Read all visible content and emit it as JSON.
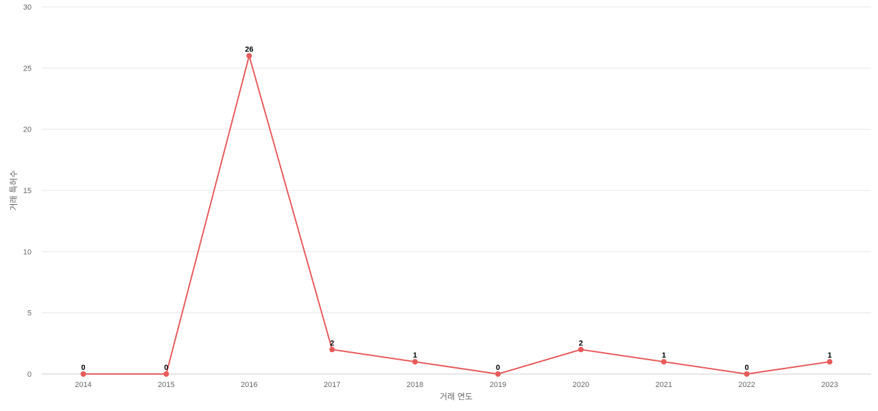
{
  "chart_data": {
    "type": "line",
    "categories": [
      "2014",
      "2015",
      "2016",
      "2017",
      "2018",
      "2019",
      "2020",
      "2021",
      "2022",
      "2023"
    ],
    "series": [
      {
        "values": [
          0,
          0,
          26,
          2,
          1,
          0,
          2,
          1,
          0,
          1
        ]
      }
    ],
    "xlabel": "거래 연도",
    "ylabel": "거래 특허수",
    "ylim": [
      0,
      30
    ],
    "yticks": [
      "0",
      "5",
      "10",
      "15",
      "20",
      "25",
      "30"
    ],
    "grid": true,
    "data_labels": true,
    "colors": {
      "line": "#e85a5a",
      "grid": "#e6e6e6",
      "axis": "#cccccc"
    }
  }
}
